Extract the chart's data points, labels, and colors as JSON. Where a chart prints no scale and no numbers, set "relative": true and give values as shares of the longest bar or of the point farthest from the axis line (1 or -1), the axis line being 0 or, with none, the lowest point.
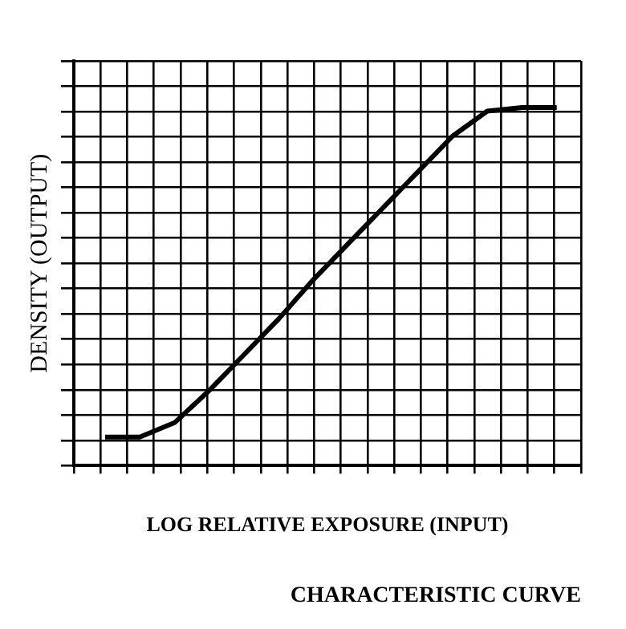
{
  "chart_data": {
    "type": "line",
    "title": "CHARACTERISTIC CURVE",
    "xlabel": "LOG RELATIVE EXPOSURE (INPUT)",
    "ylabel": "DENSITY (OUTPUT)",
    "relative": true,
    "categories": [
      null,
      null,
      null,
      null,
      null,
      null,
      null,
      null,
      null,
      null,
      null,
      null,
      null,
      null
    ],
    "series": [
      {
        "color": "#000000",
        "values": [
          0.08,
          0.08,
          0.12,
          0.21,
          0.31,
          0.41,
          0.52,
          0.62,
          0.72,
          0.82,
          0.92,
          0.99,
          1,
          1
        ]
      }
    ],
    "grid": true,
    "legend": false,
    "marker": "none",
    "line_style": "solid"
  }
}
